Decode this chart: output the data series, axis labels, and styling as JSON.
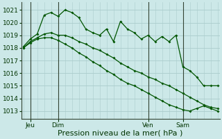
{
  "background_color": "#cce8e8",
  "grid_color": "#aacccc",
  "line_color": "#005500",
  "marker_color": "#005500",
  "ylabel_ticks": [
    1013,
    1014,
    1015,
    1016,
    1017,
    1018,
    1019,
    1020,
    1021
  ],
  "ylim": [
    1012.4,
    1021.6
  ],
  "xlim": [
    -0.3,
    28.3
  ],
  "xlabel": "Pression niveau de la mer( hPa )",
  "xlabel_fontsize": 8,
  "tick_fontsize": 6.5,
  "day_labels": [
    "Jeu",
    "Dim",
    "Ven",
    "Sam"
  ],
  "day_positions": [
    1,
    5,
    18,
    23
  ],
  "series1_x": [
    0,
    1,
    2,
    3,
    4,
    5,
    6,
    7,
    8,
    9,
    10,
    11,
    12,
    13,
    14,
    15,
    16,
    17,
    18,
    19,
    20,
    21,
    22,
    23,
    24,
    25,
    26,
    27,
    28
  ],
  "series1_y": [
    1018.1,
    1018.7,
    1019.1,
    1020.6,
    1020.8,
    1020.5,
    1021.0,
    1020.8,
    1020.4,
    1019.5,
    1019.2,
    1019.0,
    1019.5,
    1018.5,
    1020.1,
    1019.5,
    1019.2,
    1018.7,
    1019.0,
    1018.5,
    1018.9,
    1018.5,
    1019.0,
    1016.5,
    1016.2,
    1015.7,
    1015.0,
    1015.0,
    1015.0
  ],
  "series2_x": [
    0,
    1,
    2,
    3,
    4,
    5,
    6,
    7,
    8,
    9,
    10,
    11,
    12,
    13,
    14,
    15,
    16,
    17,
    18,
    19,
    20,
    21,
    22,
    23,
    24,
    25,
    26,
    27,
    28
  ],
  "series2_y": [
    1018.0,
    1018.5,
    1018.8,
    1019.1,
    1019.2,
    1019.0,
    1019.0,
    1018.8,
    1018.5,
    1018.3,
    1018.0,
    1017.8,
    1017.5,
    1017.2,
    1016.8,
    1016.5,
    1016.2,
    1016.0,
    1015.7,
    1015.5,
    1015.2,
    1015.0,
    1014.7,
    1014.4,
    1014.1,
    1013.8,
    1013.5,
    1013.3,
    1013.2
  ],
  "series3_x": [
    0,
    1,
    2,
    3,
    4,
    5,
    6,
    7,
    8,
    9,
    10,
    11,
    12,
    13,
    14,
    15,
    16,
    17,
    18,
    19,
    20,
    21,
    22,
    23,
    24,
    25,
    26,
    27,
    28
  ],
  "series3_y": [
    1018.0,
    1018.4,
    1018.7,
    1018.8,
    1018.8,
    1018.6,
    1018.3,
    1018.0,
    1017.6,
    1017.3,
    1016.9,
    1016.6,
    1016.2,
    1015.9,
    1015.5,
    1015.2,
    1015.0,
    1014.7,
    1014.4,
    1014.1,
    1013.8,
    1013.5,
    1013.3,
    1013.1,
    1013.0,
    1013.2,
    1013.4,
    1013.2,
    1013.0
  ]
}
